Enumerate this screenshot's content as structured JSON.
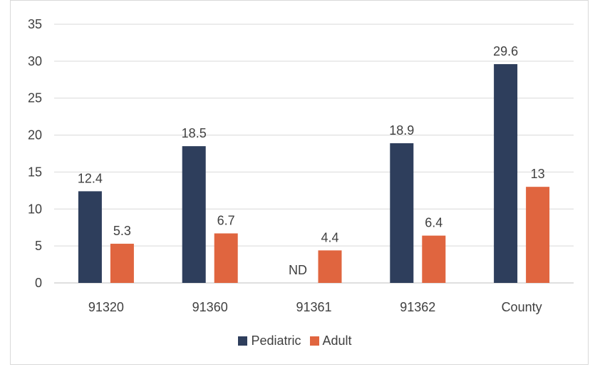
{
  "chart_data": {
    "type": "bar",
    "categories": [
      "91320",
      "91360",
      "91361",
      "91362",
      "County"
    ],
    "series": [
      {
        "name": "Pediatric",
        "color": "#2e3e5c",
        "values": [
          12.4,
          18.5,
          null,
          18.9,
          29.6
        ],
        "labels": [
          "12.4",
          "18.5",
          "ND",
          "18.9",
          "29.6"
        ]
      },
      {
        "name": "Adult",
        "color": "#e0653f",
        "values": [
          5.3,
          6.7,
          4.4,
          6.4,
          13
        ],
        "labels": [
          "5.3",
          "6.7",
          "4.4",
          "6.4",
          "13"
        ]
      }
    ],
    "y_ticks": [
      "0",
      "5",
      "10",
      "15",
      "20",
      "25",
      "30",
      "35"
    ],
    "ylim": [
      0,
      35
    ],
    "grid": true,
    "legend_position": "bottom"
  }
}
